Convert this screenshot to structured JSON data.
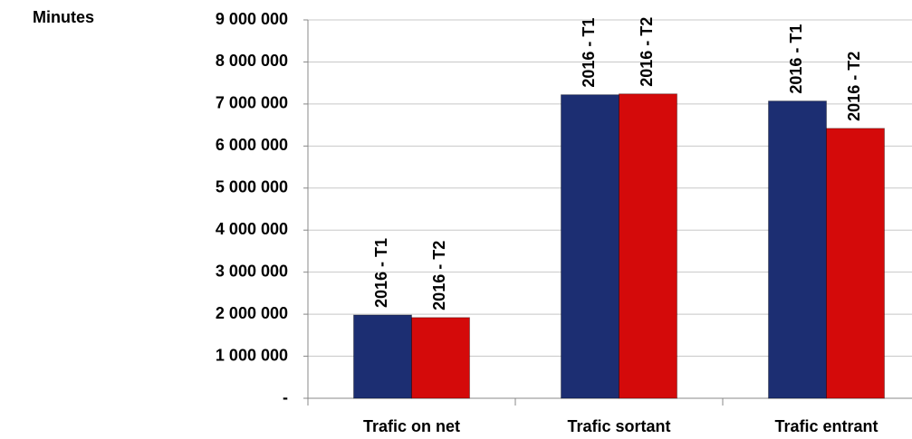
{
  "chart_data": {
    "type": "bar",
    "ylabel": "Minutes",
    "categories": [
      "Trafic on net",
      "Trafic sortant",
      "Trafic entrant"
    ],
    "series": [
      {
        "name": "2016 - T1",
        "color": "#1c2e72",
        "values": [
          1980000,
          7220000,
          7070000
        ]
      },
      {
        "name": "2016 - T2",
        "color": "#d40a0a",
        "values": [
          1920000,
          7240000,
          6420000
        ]
      }
    ],
    "ylim": [
      0,
      9000000
    ],
    "yticks": [
      {
        "value": 0,
        "label": "-"
      },
      {
        "value": 1000000,
        "label": "1 000 000"
      },
      {
        "value": 2000000,
        "label": "2 000 000"
      },
      {
        "value": 3000000,
        "label": "3 000 000"
      },
      {
        "value": 4000000,
        "label": "4 000 000"
      },
      {
        "value": 5000000,
        "label": "5 000 000"
      },
      {
        "value": 6000000,
        "label": "6 000 000"
      },
      {
        "value": 7000000,
        "label": "7 000 000"
      },
      {
        "value": 8000000,
        "label": "8 000 000"
      },
      {
        "value": 9000000,
        "label": "9 000 000"
      }
    ],
    "grid": true
  }
}
